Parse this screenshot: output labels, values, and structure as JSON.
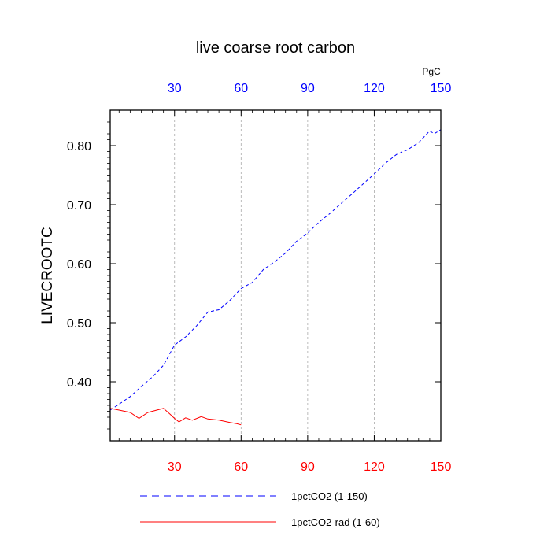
{
  "chart_data": {
    "type": "line",
    "title": "live coarse root carbon",
    "ylabel": "LIVECROOTC",
    "top_axis_unit": "PgC",
    "xlim": [
      1,
      150
    ],
    "ylim": [
      0.3,
      0.86
    ],
    "grid": "vertical dashed lines at major x ticks",
    "y_ticks": [
      {
        "value": 0.4,
        "label": "0.40"
      },
      {
        "value": 0.5,
        "label": "0.50"
      },
      {
        "value": 0.6,
        "label": "0.60"
      },
      {
        "value": 0.7,
        "label": "0.70"
      },
      {
        "value": 0.8,
        "label": "0.80"
      }
    ],
    "x_ticks_bottom": [
      {
        "value": 30,
        "label": "30"
      },
      {
        "value": 60,
        "label": "60"
      },
      {
        "value": 90,
        "label": "90"
      },
      {
        "value": 120,
        "label": "120"
      },
      {
        "value": 150,
        "label": "150"
      }
    ],
    "x_ticks_top": [
      {
        "value": 30,
        "label": "30"
      },
      {
        "value": 60,
        "label": "60"
      },
      {
        "value": 90,
        "label": "90"
      },
      {
        "value": 120,
        "label": "120"
      },
      {
        "value": 150,
        "label": "150"
      }
    ],
    "legend_position": "bottom",
    "series": [
      {
        "name": "1pctCO2 (1-150)",
        "color": "#0000ff",
        "style": "dashed",
        "x": [
          1,
          5,
          10,
          15,
          20,
          25,
          30,
          35,
          40,
          45,
          50,
          55,
          60,
          65,
          70,
          75,
          80,
          85,
          90,
          95,
          100,
          105,
          110,
          115,
          120,
          125,
          130,
          135,
          140,
          145,
          147,
          150
        ],
        "y": [
          0.352,
          0.362,
          0.375,
          0.392,
          0.408,
          0.428,
          0.462,
          0.476,
          0.495,
          0.518,
          0.522,
          0.538,
          0.558,
          0.568,
          0.59,
          0.603,
          0.618,
          0.638,
          0.652,
          0.67,
          0.685,
          0.702,
          0.718,
          0.735,
          0.752,
          0.77,
          0.785,
          0.793,
          0.805,
          0.825,
          0.82,
          0.827
        ]
      },
      {
        "name": "1pctCO2-rad (1-60)",
        "color": "#ff0000",
        "style": "solid",
        "x": [
          1,
          5,
          10,
          14,
          18,
          22,
          25,
          28,
          30,
          32,
          35,
          38,
          42,
          45,
          50,
          55,
          58,
          60
        ],
        "y": [
          0.355,
          0.352,
          0.348,
          0.338,
          0.348,
          0.352,
          0.355,
          0.345,
          0.338,
          0.332,
          0.339,
          0.335,
          0.341,
          0.337,
          0.335,
          0.331,
          0.329,
          0.327
        ]
      }
    ]
  }
}
